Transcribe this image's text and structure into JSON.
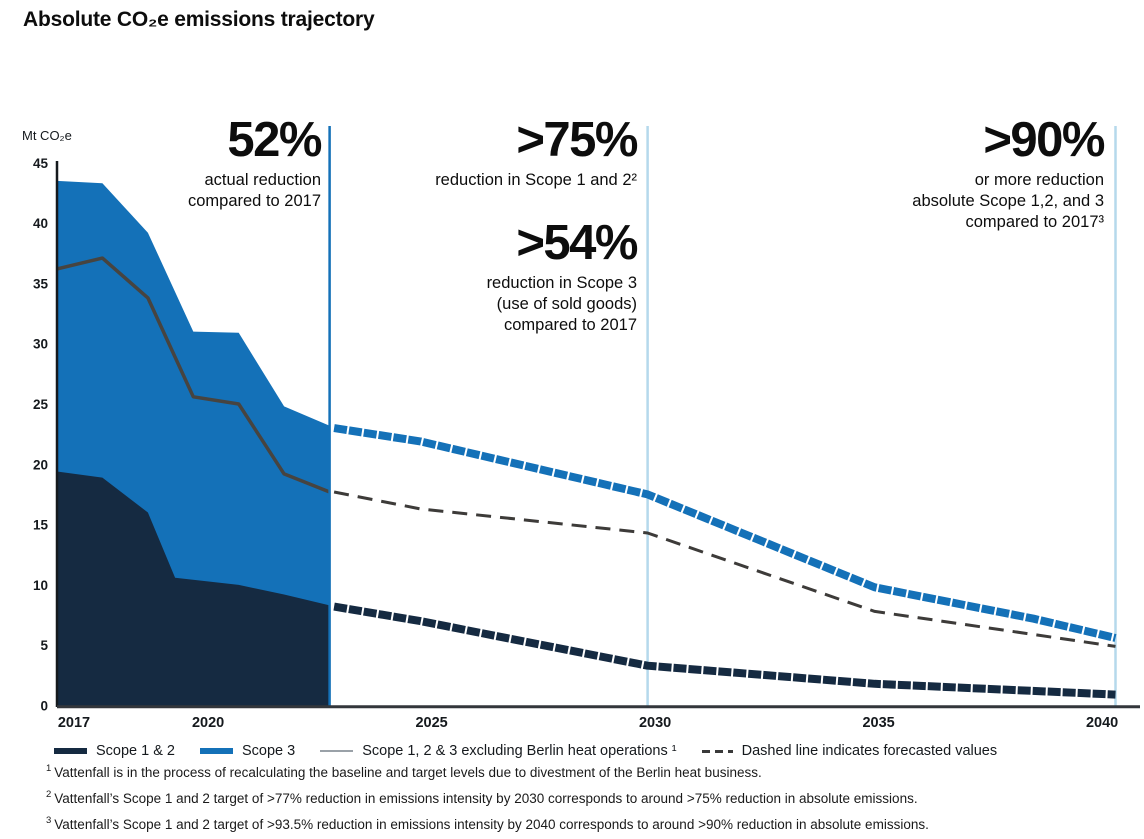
{
  "title": "Absolute CO₂e emissions trajectory",
  "colors": {
    "scope12_navy": "#152A41",
    "scope3_blue": "#1471B8",
    "gray_line": "#474440",
    "dashed_forecast": "#3D3B39",
    "marker_light_blue": "#B5D9EC",
    "axis": "#33363B"
  },
  "chart_data": {
    "type": "area",
    "title": "Absolute CO₂e emissions trajectory",
    "ylabel": "Mt CO₂e",
    "xlabel": "",
    "ylim": [
      0,
      45
    ],
    "y_ticks": [
      45,
      40,
      35,
      30,
      25,
      20,
      15,
      10,
      5,
      0
    ],
    "x_ticks": [
      2017,
      2020,
      2025,
      2030,
      2035,
      2040
    ],
    "grid": false,
    "forecast_boundary_year": 2023,
    "marker_lines": [
      {
        "x": 2023,
        "color": "#1471B8"
      },
      {
        "x": 2030,
        "color": "#B5D9EC"
      },
      {
        "x": 2040.3,
        "color": "#B5D9EC"
      }
    ],
    "series": [
      {
        "name": "Total Scope 1, 2 and 3 (actual, area top = Scope 3 band)",
        "kind": "area",
        "color": "#1471B8",
        "points": [
          [
            2017,
            43.5
          ],
          [
            2018,
            43.3
          ],
          [
            2019,
            39.2
          ],
          [
            2020,
            31.0
          ],
          [
            2021,
            30.9
          ],
          [
            2022,
            24.8
          ],
          [
            2023,
            23.2
          ]
        ]
      },
      {
        "name": "Scope 1 & 2 (actual)",
        "kind": "area",
        "color": "#152A41",
        "points": [
          [
            2017,
            19.4
          ],
          [
            2018,
            18.9
          ],
          [
            2019,
            16.0
          ],
          [
            2019.6,
            10.6
          ],
          [
            2021,
            10.0
          ],
          [
            2022,
            9.2
          ],
          [
            2023,
            8.3
          ]
        ]
      },
      {
        "name": "Scope 1, 2 & 3 excluding Berlin heat operations (actual)",
        "kind": "line",
        "color": "#474440",
        "width": 3.5,
        "points": [
          [
            2017,
            36.2
          ],
          [
            2018,
            37.1
          ],
          [
            2019,
            33.8
          ],
          [
            2020,
            25.6
          ],
          [
            2021,
            25.0
          ],
          [
            2022,
            19.2
          ],
          [
            2023,
            17.7
          ]
        ]
      },
      {
        "name": "Total Scope 1, 2 and 3 (forecast)",
        "kind": "line-thick-dashed",
        "color": "#1471B8",
        "width": 8,
        "points": [
          [
            2023.1,
            23.0
          ],
          [
            2025,
            21.9
          ],
          [
            2030,
            17.5
          ],
          [
            2035,
            9.8
          ],
          [
            2038.5,
            7.2
          ],
          [
            2040.3,
            5.6
          ]
        ]
      },
      {
        "name": "Scope 1 & 2 (forecast)",
        "kind": "line-thick-dashed",
        "color": "#152A41",
        "width": 8,
        "points": [
          [
            2023.1,
            8.2
          ],
          [
            2025,
            7.0
          ],
          [
            2030,
            3.3
          ],
          [
            2035,
            1.8
          ],
          [
            2040.3,
            0.9
          ]
        ]
      },
      {
        "name": "Scope 1, 2 & 3 excluding Berlin heat operations (forecast)",
        "kind": "line-dashed",
        "color": "#3D3B39",
        "width": 3,
        "points": [
          [
            2023.1,
            17.7
          ],
          [
            2025,
            16.3
          ],
          [
            2030,
            14.3
          ],
          [
            2035,
            7.8
          ],
          [
            2040.3,
            4.9
          ]
        ]
      }
    ]
  },
  "annotations": [
    {
      "value": "52%",
      "lines": [
        "actual reduction",
        "compared to 2017"
      ]
    },
    {
      "value": ">75%",
      "lines": [
        "reduction in Scope 1 and 2²"
      ]
    },
    {
      "value": ">54%",
      "lines": [
        "reduction in Scope 3",
        "(use of sold goods)",
        "compared to 2017"
      ]
    },
    {
      "value": ">90%",
      "lines": [
        "or more reduction",
        "absolute Scope 1,2, and 3",
        "compared to 2017³"
      ]
    }
  ],
  "legend": {
    "items": [
      {
        "swatch": "bar-navy",
        "label": "Scope 1 & 2"
      },
      {
        "swatch": "bar-blue",
        "label": "Scope 3"
      },
      {
        "swatch": "line-gray",
        "label": "Scope 1, 2 & 3 excluding Berlin heat operations ¹"
      },
      {
        "swatch": "dash-dark",
        "label": "Dashed line indicates forecasted values"
      }
    ]
  },
  "footnotes": [
    {
      "sup": "1",
      "text": "Vattenfall is in the process of recalculating the baseline and target levels due to divestment of the Berlin heat business."
    },
    {
      "sup": "2",
      "text": "Vattenfall’s Scope 1 and 2 target of >77% reduction in emissions intensity by 2030 corresponds to around >75% reduction in absolute emissions."
    },
    {
      "sup": "3",
      "text": "Vattenfall’s Scope 1 and 2 target of >93.5% reduction in emissions intensity by 2040 corresponds to around >90% reduction in absolute emissions."
    }
  ]
}
